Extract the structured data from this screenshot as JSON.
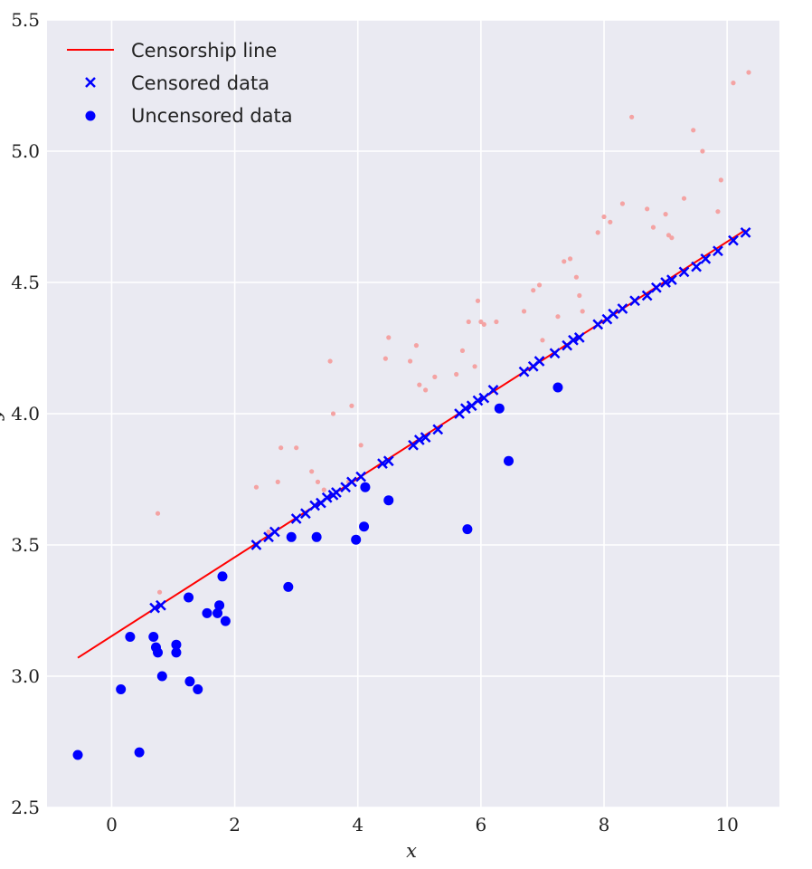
{
  "chart_data": {
    "type": "scatter",
    "title": "",
    "xlabel": "x",
    "ylabel": "y",
    "xlim": [
      -1.05,
      10.85
    ],
    "ylim": [
      2.5,
      5.5
    ],
    "xticks": [
      0,
      2,
      4,
      6,
      8,
      10
    ],
    "yticks": [
      2.5,
      3.0,
      3.5,
      4.0,
      4.5,
      5.0,
      5.5
    ],
    "x_tick_labels": [
      "0",
      "2",
      "4",
      "6",
      "8",
      "10"
    ],
    "y_tick_labels": [
      "2.5",
      "3.0",
      "3.5",
      "4.0",
      "4.5",
      "5.0",
      "5.5"
    ],
    "grid": true,
    "legend_position": "top-left",
    "colors": {
      "background": "#eaeaf2",
      "grid": "#ffffff",
      "line": "#ff0000",
      "markers": "#0000ff",
      "faded": "#f4a3a3"
    },
    "legend": [
      {
        "label": "Censorship line",
        "kind": "line"
      },
      {
        "label": "Censored data",
        "kind": "x"
      },
      {
        "label": "Uncensored data",
        "kind": "dot"
      }
    ],
    "series": [
      {
        "name": "Censorship line",
        "kind": "line",
        "x": [
          -0.55,
          10.3
        ],
        "y": [
          3.07,
          4.7
        ]
      },
      {
        "name": "Censored data",
        "kind": "x",
        "x": [
          0.7,
          0.8,
          2.35,
          2.55,
          2.65,
          3.0,
          3.15,
          3.3,
          3.4,
          3.5,
          3.6,
          3.65,
          3.8,
          3.9,
          4.05,
          4.4,
          4.5,
          4.9,
          5.0,
          5.1,
          5.3,
          5.65,
          5.75,
          5.85,
          5.95,
          6.05,
          6.2,
          6.7,
          6.85,
          6.95,
          7.2,
          7.4,
          7.5,
          7.6,
          7.9,
          8.05,
          8.15,
          8.3,
          8.5,
          8.7,
          8.85,
          9.0,
          9.1,
          9.3,
          9.5,
          9.65,
          9.85,
          10.1,
          10.3
        ],
        "y": [
          3.26,
          3.27,
          3.5,
          3.53,
          3.55,
          3.6,
          3.62,
          3.65,
          3.66,
          3.68,
          3.69,
          3.7,
          3.72,
          3.74,
          3.76,
          3.81,
          3.82,
          3.88,
          3.9,
          3.91,
          3.94,
          4.0,
          4.02,
          4.03,
          4.05,
          4.06,
          4.09,
          4.16,
          4.18,
          4.2,
          4.23,
          4.26,
          4.28,
          4.29,
          4.34,
          4.36,
          4.38,
          4.4,
          4.43,
          4.45,
          4.48,
          4.5,
          4.51,
          4.54,
          4.56,
          4.59,
          4.62,
          4.66,
          4.69
        ]
      },
      {
        "name": "Uncensored data",
        "kind": "dot",
        "x": [
          -0.55,
          0.15,
          0.3,
          0.45,
          0.68,
          0.72,
          0.75,
          0.82,
          1.05,
          1.05,
          1.25,
          1.27,
          1.4,
          1.55,
          1.72,
          1.75,
          1.8,
          1.85,
          2.87,
          2.92,
          3.33,
          3.97,
          4.1,
          4.12,
          4.5,
          5.78,
          6.3,
          6.45,
          7.25
        ],
        "y": [
          2.7,
          2.95,
          3.15,
          2.71,
          3.15,
          3.11,
          3.09,
          3.0,
          3.12,
          3.09,
          3.3,
          2.98,
          2.95,
          3.24,
          3.24,
          3.27,
          3.38,
          3.21,
          3.34,
          3.53,
          3.53,
          3.52,
          3.57,
          3.72,
          3.67,
          3.56,
          4.02,
          3.82,
          4.1
        ]
      },
      {
        "name": "",
        "kind": "faded",
        "x": [
          0.75,
          0.78,
          2.35,
          2.55,
          2.7,
          2.75,
          3.0,
          3.25,
          3.35,
          3.45,
          3.55,
          3.6,
          3.85,
          3.9,
          4.05,
          4.45,
          4.5,
          4.85,
          4.95,
          5.0,
          5.1,
          5.25,
          5.6,
          5.7,
          5.8,
          5.9,
          5.95,
          6.0,
          6.05,
          6.25,
          6.7,
          6.85,
          6.95,
          7.0,
          7.25,
          7.35,
          7.45,
          7.55,
          7.6,
          7.65,
          7.9,
          8.0,
          8.1,
          8.3,
          8.45,
          8.7,
          8.8,
          9.0,
          9.05,
          9.1,
          9.3,
          9.45,
          9.6,
          9.85,
          9.9,
          10.1,
          10.35
        ],
        "y": [
          3.62,
          3.32,
          3.72,
          3.55,
          3.74,
          3.87,
          3.87,
          3.78,
          3.74,
          3.71,
          4.2,
          4.0,
          3.74,
          4.03,
          3.88,
          4.21,
          4.29,
          4.2,
          4.26,
          4.11,
          4.09,
          4.14,
          4.15,
          4.24,
          4.35,
          4.18,
          4.43,
          4.35,
          4.34,
          4.35,
          4.39,
          4.47,
          4.49,
          4.28,
          4.37,
          4.58,
          4.59,
          4.52,
          4.45,
          4.39,
          4.69,
          4.75,
          4.73,
          4.8,
          5.13,
          4.78,
          4.71,
          4.76,
          4.68,
          4.67,
          4.82,
          5.08,
          5.0,
          4.77,
          4.89,
          5.26,
          5.3
        ]
      }
    ]
  }
}
